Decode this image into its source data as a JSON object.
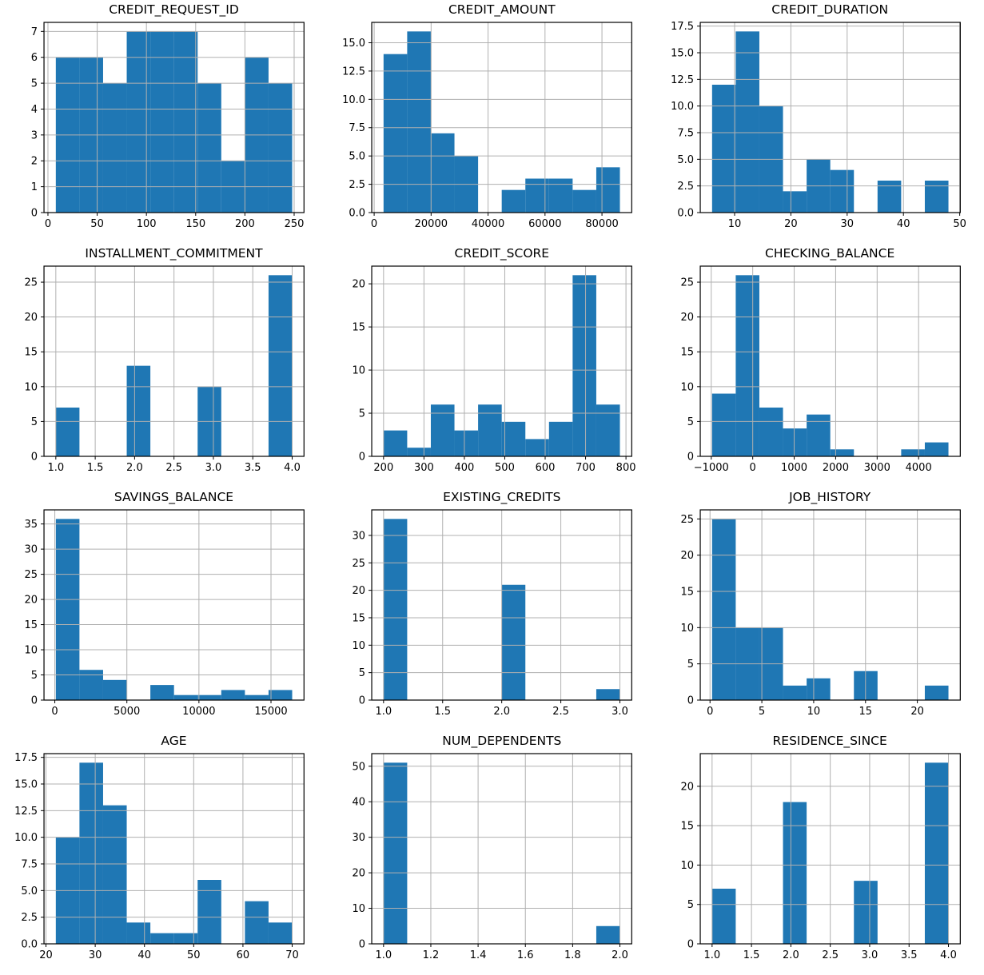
{
  "figure": {
    "bar_color": "#1f77b4",
    "grid_color": "#b0b0b0",
    "spine_color": "#000000",
    "background_color": "#ffffff",
    "tick_label_color": "#000000",
    "grid": "on",
    "legend": "none"
  },
  "chart_data": [
    {
      "type": "bar",
      "subtype": "histogram",
      "title": "CREDIT_REQUEST_ID",
      "bin_edges": [
        8,
        32,
        56,
        80,
        104,
        128,
        152,
        176,
        200,
        224,
        248
      ],
      "counts": [
        6,
        6,
        5,
        7,
        7,
        7,
        5,
        2,
        6,
        5
      ],
      "xlabel": "",
      "ylabel": "",
      "xlim": [
        -4,
        260
      ],
      "ylim": [
        0,
        7.35
      ],
      "xticks": [
        0,
        50,
        100,
        150,
        200,
        250
      ],
      "xtick_labels": [
        "0",
        "50",
        "100",
        "150",
        "200",
        "250"
      ],
      "yticks": [
        0,
        1,
        2,
        3,
        4,
        5,
        6,
        7
      ],
      "ytick_labels": [
        "0",
        "1",
        "2",
        "3",
        "4",
        "5",
        "6",
        "7"
      ]
    },
    {
      "type": "bar",
      "subtype": "histogram",
      "title": "CREDIT_AMOUNT",
      "bin_edges": [
        3300,
        11600,
        19900,
        28200,
        36500,
        44800,
        53100,
        61400,
        69700,
        78000,
        86300
      ],
      "counts": [
        14,
        16,
        7,
        5,
        0,
        2,
        3,
        3,
        2,
        4
      ],
      "xlabel": "",
      "ylabel": "",
      "xlim": [
        -850,
        90450
      ],
      "ylim": [
        0,
        16.8
      ],
      "xticks": [
        0,
        20000,
        40000,
        60000,
        80000
      ],
      "xtick_labels": [
        "0",
        "20000",
        "40000",
        "60000",
        "80000"
      ],
      "yticks": [
        0,
        2.5,
        5,
        7.5,
        10,
        12.5,
        15
      ],
      "ytick_labels": [
        "0.0",
        "2.5",
        "5.0",
        "7.5",
        "10.0",
        "12.5",
        "15.0"
      ]
    },
    {
      "type": "bar",
      "subtype": "histogram",
      "title": "CREDIT_DURATION",
      "bin_edges": [
        6,
        10.2,
        14.4,
        18.6,
        22.8,
        27,
        31.2,
        35.4,
        39.6,
        43.8,
        48
      ],
      "counts": [
        12,
        17,
        10,
        2,
        5,
        4,
        0,
        3,
        0,
        3
      ],
      "xlabel": "",
      "ylabel": "",
      "xlim": [
        3.9,
        50.1
      ],
      "ylim": [
        0,
        17.85
      ],
      "xticks": [
        10,
        20,
        30,
        40,
        50
      ],
      "xtick_labels": [
        "10",
        "20",
        "30",
        "40",
        "50"
      ],
      "yticks": [
        0,
        2.5,
        5,
        7.5,
        10,
        12.5,
        15,
        17.5
      ],
      "ytick_labels": [
        "0.0",
        "2.5",
        "5.0",
        "7.5",
        "10.0",
        "12.5",
        "15.0",
        "17.5"
      ]
    },
    {
      "type": "bar",
      "subtype": "histogram",
      "title": "INSTALLMENT_COMMITMENT",
      "bin_edges": [
        1,
        1.3,
        1.6,
        1.9,
        2.2,
        2.5,
        2.8,
        3.1,
        3.4,
        3.7,
        4
      ],
      "counts": [
        7,
        0,
        0,
        13,
        0,
        0,
        10,
        0,
        0,
        26
      ],
      "xlabel": "",
      "ylabel": "",
      "xlim": [
        0.85,
        4.15
      ],
      "ylim": [
        0,
        27.3
      ],
      "xticks": [
        1,
        1.5,
        2,
        2.5,
        3,
        3.5,
        4
      ],
      "xtick_labels": [
        "1.0",
        "1.5",
        "2.0",
        "2.5",
        "3.0",
        "3.5",
        "4.0"
      ],
      "yticks": [
        0,
        5,
        10,
        15,
        20,
        25
      ],
      "ytick_labels": [
        "0",
        "5",
        "10",
        "15",
        "20",
        "25"
      ]
    },
    {
      "type": "bar",
      "subtype": "histogram",
      "title": "CREDIT_SCORE",
      "bin_edges": [
        200,
        258.5,
        317,
        375.5,
        434,
        492.5,
        551,
        609.5,
        668,
        726.5,
        785
      ],
      "counts": [
        3,
        1,
        6,
        3,
        6,
        4,
        2,
        4,
        21,
        6
      ],
      "xlabel": "",
      "ylabel": "",
      "xlim": [
        170.75,
        814.25
      ],
      "ylim": [
        0,
        22.05
      ],
      "xticks": [
        200,
        300,
        400,
        500,
        600,
        700,
        800
      ],
      "xtick_labels": [
        "200",
        "300",
        "400",
        "500",
        "600",
        "700",
        "800"
      ],
      "yticks": [
        0,
        5,
        10,
        15,
        20
      ],
      "ytick_labels": [
        "0",
        "5",
        "10",
        "15",
        "20"
      ]
    },
    {
      "type": "bar",
      "subtype": "histogram",
      "title": "CHECKING_BALANCE",
      "bin_edges": [
        -980,
        -410,
        160,
        730,
        1300,
        1870,
        2440,
        3010,
        3580,
        4150,
        4720
      ],
      "counts": [
        9,
        26,
        7,
        4,
        6,
        1,
        0,
        0,
        1,
        2
      ],
      "xlabel": "",
      "ylabel": "",
      "xlim": [
        -1265,
        5005
      ],
      "ylim": [
        0,
        27.3
      ],
      "xticks": [
        -1000,
        0,
        1000,
        2000,
        3000,
        4000
      ],
      "xtick_labels": [
        "−1000",
        "0",
        "1000",
        "2000",
        "3000",
        "4000"
      ],
      "yticks": [
        0,
        5,
        10,
        15,
        20,
        25
      ],
      "ytick_labels": [
        "0",
        "5",
        "10",
        "15",
        "20",
        "25"
      ]
    },
    {
      "type": "bar",
      "subtype": "histogram",
      "title": "SAVINGS_BALANCE",
      "bin_edges": [
        70,
        1710,
        3350,
        4990,
        6630,
        8270,
        9910,
        11550,
        13190,
        14830,
        16470
      ],
      "counts": [
        36,
        6,
        4,
        0,
        3,
        1,
        1,
        2,
        1,
        2
      ],
      "xlabel": "",
      "ylabel": "",
      "xlim": [
        -750,
        17290
      ],
      "ylim": [
        0,
        37.8
      ],
      "xticks": [
        0,
        5000,
        10000,
        15000
      ],
      "xtick_labels": [
        "0",
        "5000",
        "10000",
        "15000"
      ],
      "yticks": [
        0,
        5,
        10,
        15,
        20,
        25,
        30,
        35
      ],
      "ytick_labels": [
        "0",
        "5",
        "10",
        "15",
        "20",
        "25",
        "30",
        "35"
      ]
    },
    {
      "type": "bar",
      "subtype": "histogram",
      "title": "EXISTING_CREDITS",
      "bin_edges": [
        1,
        1.2,
        1.4,
        1.6,
        1.8,
        2,
        2.2,
        2.4,
        2.6,
        2.8,
        3
      ],
      "counts": [
        33,
        0,
        0,
        0,
        0,
        21,
        0,
        0,
        0,
        2
      ],
      "xlabel": "",
      "ylabel": "",
      "xlim": [
        0.9,
        3.1
      ],
      "ylim": [
        0,
        34.65
      ],
      "xticks": [
        1,
        1.5,
        2,
        2.5,
        3
      ],
      "xtick_labels": [
        "1.0",
        "1.5",
        "2.0",
        "2.5",
        "3.0"
      ],
      "yticks": [
        0,
        5,
        10,
        15,
        20,
        25,
        30
      ],
      "ytick_labels": [
        "0",
        "5",
        "10",
        "15",
        "20",
        "25",
        "30"
      ]
    },
    {
      "type": "bar",
      "subtype": "histogram",
      "title": "JOB_HISTORY",
      "bin_edges": [
        0.2,
        2.48,
        4.76,
        7.04,
        9.32,
        11.6,
        13.88,
        16.16,
        18.44,
        20.72,
        23
      ],
      "counts": [
        25,
        10,
        10,
        2,
        3,
        0,
        4,
        0,
        0,
        2
      ],
      "xlabel": "",
      "ylabel": "",
      "xlim": [
        -0.94,
        24.14
      ],
      "ylim": [
        0,
        26.25
      ],
      "xticks": [
        0,
        5,
        10,
        15,
        20
      ],
      "xtick_labels": [
        "0",
        "5",
        "10",
        "15",
        "20"
      ],
      "yticks": [
        0,
        5,
        10,
        15,
        20,
        25
      ],
      "ytick_labels": [
        "0",
        "5",
        "10",
        "15",
        "20",
        "25"
      ]
    },
    {
      "type": "bar",
      "subtype": "histogram",
      "title": "AGE",
      "bin_edges": [
        22,
        26.8,
        31.6,
        36.4,
        41.2,
        46,
        50.8,
        55.6,
        60.4,
        65.2,
        70
      ],
      "counts": [
        10,
        17,
        13,
        2,
        1,
        1,
        6,
        0,
        4,
        2
      ],
      "xlabel": "",
      "ylabel": "",
      "xlim": [
        19.6,
        72.4
      ],
      "ylim": [
        0,
        17.85
      ],
      "xticks": [
        20,
        30,
        40,
        50,
        60,
        70
      ],
      "xtick_labels": [
        "20",
        "30",
        "40",
        "50",
        "60",
        "70"
      ],
      "yticks": [
        0,
        2.5,
        5,
        7.5,
        10,
        12.5,
        15,
        17.5
      ],
      "ytick_labels": [
        "0.0",
        "2.5",
        "5.0",
        "7.5",
        "10.0",
        "12.5",
        "15.0",
        "17.5"
      ]
    },
    {
      "type": "bar",
      "subtype": "histogram",
      "title": "NUM_DEPENDENTS",
      "bin_edges": [
        1,
        1.1,
        1.2,
        1.3,
        1.4,
        1.5,
        1.6,
        1.7,
        1.8,
        1.9,
        2
      ],
      "counts": [
        51,
        0,
        0,
        0,
        0,
        0,
        0,
        0,
        0,
        5
      ],
      "xlabel": "",
      "ylabel": "",
      "xlim": [
        0.95,
        2.05
      ],
      "ylim": [
        0,
        53.55
      ],
      "xticks": [
        1,
        1.2,
        1.4,
        1.6,
        1.8,
        2
      ],
      "xtick_labels": [
        "1.0",
        "1.2",
        "1.4",
        "1.6",
        "1.8",
        "2.0"
      ],
      "yticks": [
        0,
        10,
        20,
        30,
        40,
        50
      ],
      "ytick_labels": [
        "0",
        "10",
        "20",
        "30",
        "40",
        "50"
      ]
    },
    {
      "type": "bar",
      "subtype": "histogram",
      "title": "RESIDENCE_SINCE",
      "bin_edges": [
        1,
        1.3,
        1.6,
        1.9,
        2.2,
        2.5,
        2.8,
        3.1,
        3.4,
        3.7,
        4
      ],
      "counts": [
        7,
        0,
        0,
        18,
        0,
        0,
        8,
        0,
        0,
        23
      ],
      "xlabel": "",
      "ylabel": "",
      "xlim": [
        0.85,
        4.15
      ],
      "ylim": [
        0,
        24.15
      ],
      "xticks": [
        1,
        1.5,
        2,
        2.5,
        3,
        3.5,
        4
      ],
      "xtick_labels": [
        "1.0",
        "1.5",
        "2.0",
        "2.5",
        "3.0",
        "3.5",
        "4.0"
      ],
      "yticks": [
        0,
        5,
        10,
        15,
        20
      ],
      "ytick_labels": [
        "0",
        "5",
        "10",
        "15",
        "20"
      ]
    }
  ]
}
